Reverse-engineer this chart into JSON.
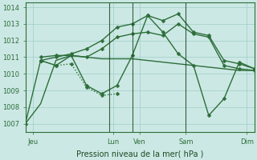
{
  "background_color": "#cce8e4",
  "grid_color": "#9ecec8",
  "line_color": "#2d6e3a",
  "xlabel": "Pression niveau de la mer( hPa )",
  "ylim": [
    1006.5,
    1014.3
  ],
  "xlim": [
    0,
    30
  ],
  "ytick_positions": [
    1007,
    1008,
    1009,
    1010,
    1011,
    1012,
    1013,
    1014
  ],
  "xtick_positions": [
    1,
    11.5,
    15,
    21,
    29
  ],
  "xtick_labels": [
    "Jeu",
    "Lun",
    "Ven",
    "Sam",
    "Dim"
  ],
  "vline_positions": [
    11,
    14,
    21
  ],
  "series": [
    {
      "x": [
        0,
        2,
        4,
        6,
        8,
        10,
        12,
        14,
        16,
        18,
        20,
        22,
        24,
        26,
        28,
        30
      ],
      "y": [
        1007.0,
        1008.2,
        1010.8,
        1011.1,
        1011.0,
        1010.9,
        1010.9,
        1010.9,
        1010.8,
        1010.7,
        1010.6,
        1010.5,
        1010.4,
        1010.3,
        1010.2,
        1010.2
      ],
      "style": "-",
      "marker": null,
      "markersize": 0,
      "linewidth": 1.0
    },
    {
      "x": [
        2,
        4,
        6,
        8,
        10,
        12
      ],
      "y": [
        1010.8,
        1010.5,
        1010.6,
        1009.2,
        1008.7,
        1008.8
      ],
      "style": ":",
      "marker": "D",
      "markersize": 2.5,
      "linewidth": 1.0
    },
    {
      "x": [
        2,
        4,
        6,
        8,
        10,
        12,
        14,
        16,
        18,
        20,
        22,
        24,
        26,
        28,
        30
      ],
      "y": [
        1010.8,
        1011.0,
        1011.2,
        1011.5,
        1012.0,
        1012.8,
        1013.0,
        1013.5,
        1013.2,
        1013.6,
        1012.5,
        1012.3,
        1010.8,
        1010.6,
        1010.3
      ],
      "style": "-",
      "marker": "D",
      "markersize": 2.5,
      "linewidth": 1.0
    },
    {
      "x": [
        2,
        4,
        6,
        8,
        10,
        12,
        14,
        16,
        18,
        20,
        22,
        24,
        26,
        28,
        30
      ],
      "y": [
        1011.0,
        1011.1,
        1011.1,
        1011.0,
        1011.5,
        1012.2,
        1012.4,
        1012.5,
        1012.3,
        1013.0,
        1012.4,
        1012.2,
        1010.5,
        1010.3,
        1010.2
      ],
      "style": "-",
      "marker": "D",
      "markersize": 2.5,
      "linewidth": 1.0
    },
    {
      "x": [
        0,
        2,
        4,
        6,
        8,
        10,
        12,
        14,
        16,
        18,
        20,
        22,
        24,
        26,
        28,
        30
      ],
      "y": [
        1007.0,
        1010.8,
        1010.5,
        1011.1,
        1009.3,
        1008.8,
        1009.3,
        1011.1,
        1013.5,
        1012.5,
        1011.2,
        1010.5,
        1007.5,
        1008.5,
        1010.7,
        1010.3
      ],
      "style": "-",
      "marker": "D",
      "markersize": 2.5,
      "linewidth": 1.0
    }
  ]
}
